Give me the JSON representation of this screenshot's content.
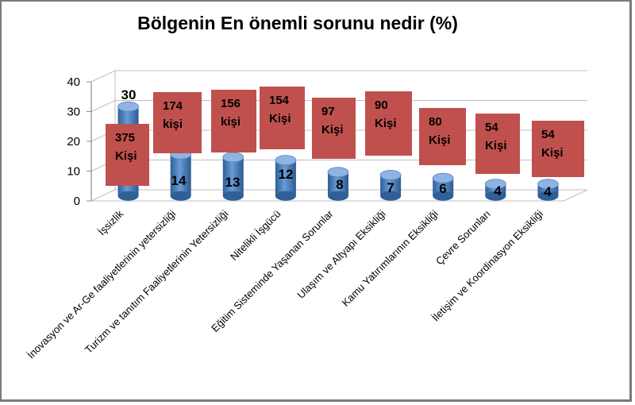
{
  "chart_data": {
    "type": "bar",
    "title": "Bölgenin En önemli sorunu nedir (%)",
    "categories": [
      "İşsizlik",
      "İnovasyon ve Ar-Ge faaliyetlerinin yetersizliği",
      "Turizm ve tanıtım Faaliyetlerinin Yetersizliği",
      "Nitelikli İşgücü",
      "Eğitim Sisteminde Yaşanan Sorunlar",
      "Ulaşım ve Altyapı Eksikliği",
      "Kamu Yatırımlarının Eksikliği",
      "Çevre Sorunları",
      "İletişim ve Koordinasyon Eksikliği"
    ],
    "values": [
      30,
      14,
      13,
      12,
      8,
      7,
      6,
      4,
      4
    ],
    "counts": [
      "375 Kişi",
      "174 kişi",
      "156 kişi",
      "154 Kişi",
      "97 Kişi",
      "90 Kişi",
      "80 Kişi",
      "54 Kişi",
      "54 Kişi"
    ],
    "ylim": [
      0,
      40
    ],
    "yticks": [
      "0",
      "10",
      "20",
      "30",
      "40"
    ],
    "grid": true,
    "legend": "none",
    "colors": {
      "bar": "#4f81bd",
      "count_box": "#c0504d",
      "grid": "#bfbfbf"
    }
  }
}
